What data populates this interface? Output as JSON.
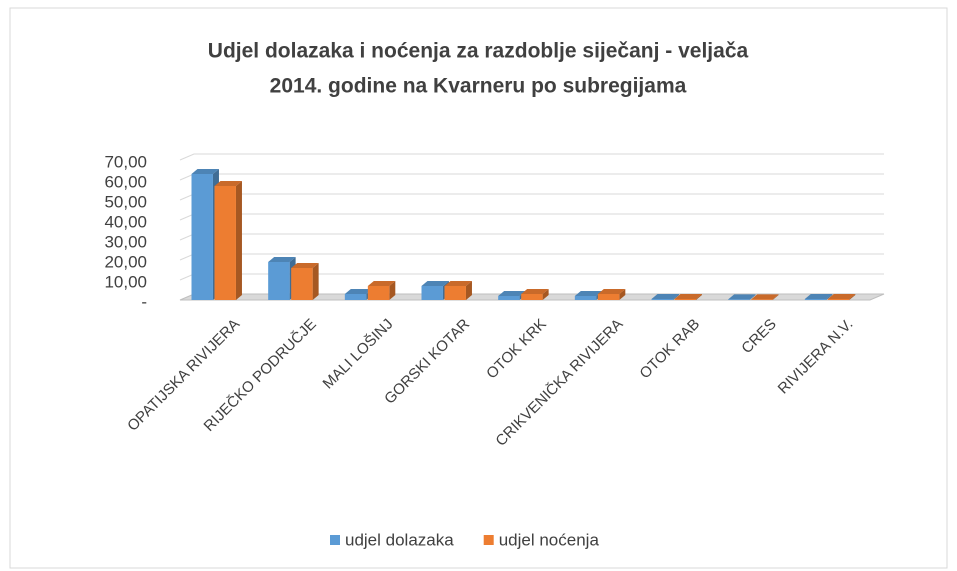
{
  "chart_data": {
    "type": "bar3d",
    "title": [
      "Udjel dolazaka i noćenja za razdoblje siječanj - veljača",
      "2014. godine na Kvarneru po subregijama"
    ],
    "categories": [
      "OPATIJSKA RIVIJERA",
      "RIJEČKO PODRUČJE",
      "MALI LOŠINJ",
      "GORSKI KOTAR",
      "OTOK KRK",
      "CRIKVENIČKA RIVIJERA",
      "OTOK RAB",
      "CRES",
      "RIVIJERA N.V."
    ],
    "series": [
      {
        "name": "udjel dolazaka",
        "color": "#5b9bd5",
        "values": [
          63,
          19,
          3,
          7,
          2,
          2,
          0.5,
          0.3,
          0.5
        ]
      },
      {
        "name": "udjel noćenja",
        "color": "#ed7d31",
        "values": [
          57,
          16,
          7,
          7,
          3,
          3,
          0.5,
          0.3,
          0.5
        ]
      }
    ],
    "ylim": [
      0,
      70
    ],
    "yticks": [
      {
        "value": 0,
        "label": "-"
      },
      {
        "value": 10,
        "label": "10,00"
      },
      {
        "value": 20,
        "label": "20,00"
      },
      {
        "value": 30,
        "label": "30,00"
      },
      {
        "value": 40,
        "label": "40,00"
      },
      {
        "value": 50,
        "label": "50,00"
      },
      {
        "value": 60,
        "label": "60,00"
      },
      {
        "value": 70,
        "label": "70,00"
      }
    ],
    "grid": true,
    "legend": "bottom"
  }
}
